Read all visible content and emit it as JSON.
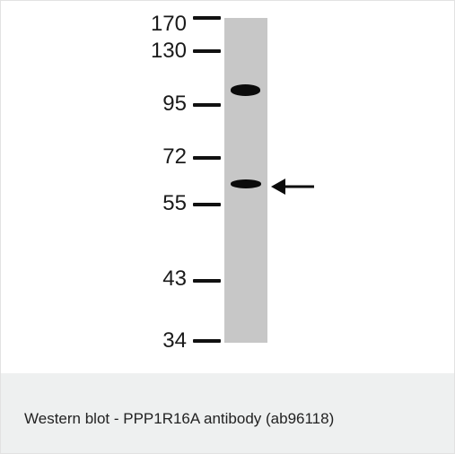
{
  "figure": {
    "markers": [
      {
        "label": "170"
      },
      {
        "label": "130"
      },
      {
        "label": "95"
      },
      {
        "label": "72"
      },
      {
        "label": "55"
      },
      {
        "label": "43"
      },
      {
        "label": "34"
      }
    ],
    "lane_color": "#c7c7c7",
    "band_color": "#0b0b0b",
    "arrow_icon": "arrow-left-icon"
  },
  "caption": {
    "text": "Western blot - PPP1R16A antibody (ab96118)"
  }
}
